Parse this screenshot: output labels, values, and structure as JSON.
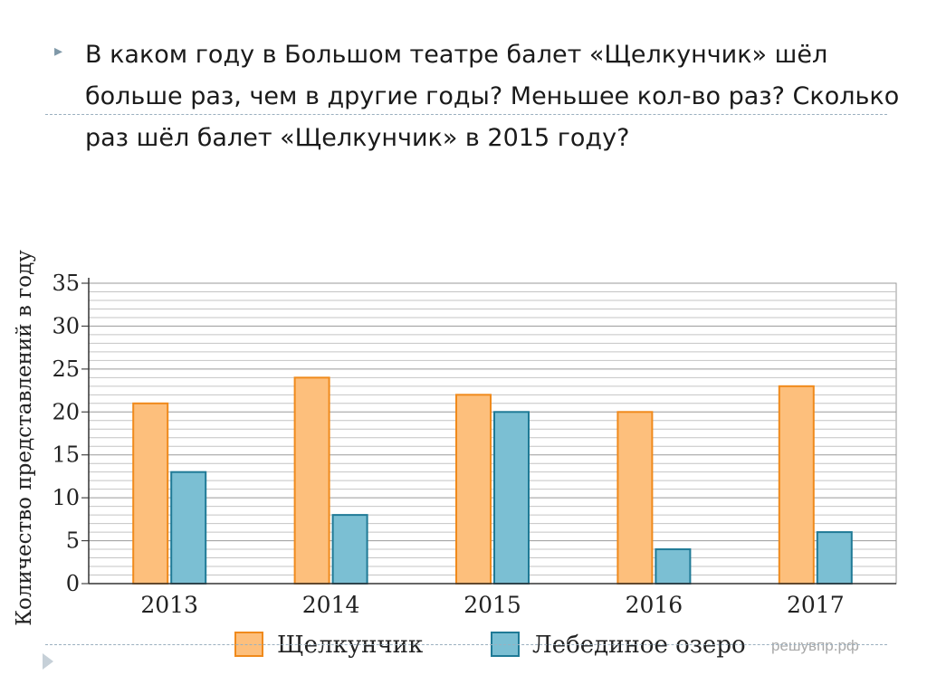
{
  "slide": {
    "question": "В каком году в Большом театре балет «Щелкунчик» шёл больше раз, чем в другие годы?  Меньшее кол-во раз? Сколько раз шёл балет «Щелкунчик» в 2015 году?",
    "bullet_icon": "triangle-right"
  },
  "chart_data": {
    "type": "bar",
    "title": "",
    "ylabel": "Количество представлений в году",
    "xlabel": "",
    "categories": [
      "2013",
      "2014",
      "2015",
      "2016",
      "2017"
    ],
    "series": [
      {
        "name": "Щелкунчик",
        "values": [
          21,
          24,
          22,
          20,
          23
        ],
        "fill": "#fdbf7c",
        "stroke": "#f08a1c"
      },
      {
        "name": "Лебединое озеро",
        "values": [
          13,
          8,
          20,
          4,
          6
        ],
        "fill": "#7bbfd3",
        "stroke": "#1f7a96"
      }
    ],
    "ylim": [
      0,
      35
    ],
    "yticks": [
      "0",
      "5",
      "10",
      "15",
      "20",
      "25",
      "30",
      "35"
    ],
    "grid": true,
    "legend_position": "bottom",
    "watermark": "решувпр.рф"
  }
}
